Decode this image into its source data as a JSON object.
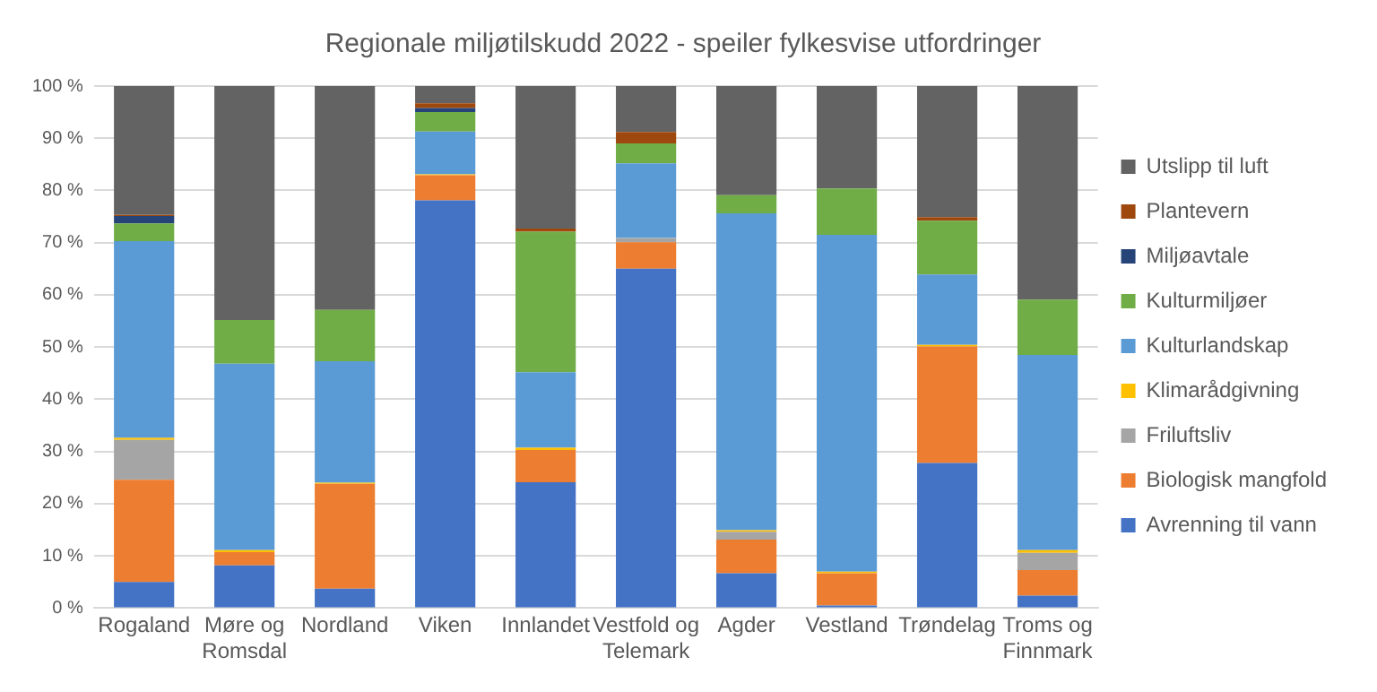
{
  "chart_data": {
    "type": "bar",
    "stacked": true,
    "title": "Regionale miljøtilskudd 2022 - speiler fylkesvise utfordringer",
    "categories": [
      "Rogaland",
      "Møre og Romsdal",
      "Nordland",
      "Viken",
      "Innlandet",
      "Vestfold og Telemark",
      "Agder",
      "Vestland",
      "Trøndelag",
      "Troms og Finnmark"
    ],
    "series": [
      {
        "name": "Avrenning til vann",
        "color": "#4472c4",
        "values": [
          5,
          8.2,
          3.7,
          78.1,
          24.1,
          65,
          6.7,
          0.5,
          27.8,
          2.4
        ]
      },
      {
        "name": "Biologisk mangfold",
        "color": "#ed7d31",
        "values": [
          19.6,
          2.5,
          20.1,
          4.8,
          6.2,
          5.1,
          6.4,
          6.2,
          22.3,
          4.9
        ]
      },
      {
        "name": "Friluftsliv",
        "color": "#a5a5a5",
        "values": [
          7.6,
          0,
          0,
          0,
          0,
          0.8,
          1.5,
          0,
          0,
          3.3
        ]
      },
      {
        "name": "Klimarådgivning",
        "color": "#ffc000",
        "values": [
          0.4,
          0.4,
          0.2,
          0.2,
          0.4,
          0,
          0.3,
          0.3,
          0.3,
          0.5
        ]
      },
      {
        "name": "Kulturlandskap",
        "color": "#5b9bd5",
        "values": [
          37.7,
          35.7,
          23.3,
          8.2,
          14.5,
          14.3,
          60.7,
          64.5,
          13.5,
          37.4
        ]
      },
      {
        "name": "Kulturmiljøer",
        "color": "#70ad47",
        "values": [
          3.4,
          8.4,
          9.8,
          3.7,
          26.9,
          3.8,
          3.5,
          8.9,
          10.3,
          10.6
        ]
      },
      {
        "name": "Miljøavtale",
        "color": "#264478",
        "values": [
          1.4,
          0,
          0,
          0.8,
          0,
          0,
          0,
          0,
          0,
          0
        ]
      },
      {
        "name": "Plantevern",
        "color": "#9e480e",
        "values": [
          0.2,
          0,
          0,
          0.9,
          0.6,
          2.2,
          0,
          0,
          0.7,
          0
        ]
      },
      {
        "name": "Utslipp til luft",
        "color": "#636363",
        "values": [
          24.7,
          44.8,
          42.9,
          3.3,
          27.3,
          8.8,
          20.9,
          19.6,
          25.1,
          40.9
        ]
      }
    ],
    "ylim": [
      0,
      100
    ],
    "yticks": [
      {
        "value": 0,
        "label": "0 %"
      },
      {
        "value": 10,
        "label": "10 %"
      },
      {
        "value": 20,
        "label": "20 %"
      },
      {
        "value": 30,
        "label": "30 %"
      },
      {
        "value": 40,
        "label": "40 %"
      },
      {
        "value": 50,
        "label": "50 %"
      },
      {
        "value": 60,
        "label": "60 %"
      },
      {
        "value": 70,
        "label": "70 %"
      },
      {
        "value": 80,
        "label": "80 %"
      },
      {
        "value": 90,
        "label": "90 %"
      },
      {
        "value": 100,
        "label": "100 %"
      }
    ],
    "grid": "y",
    "legend": "right"
  }
}
